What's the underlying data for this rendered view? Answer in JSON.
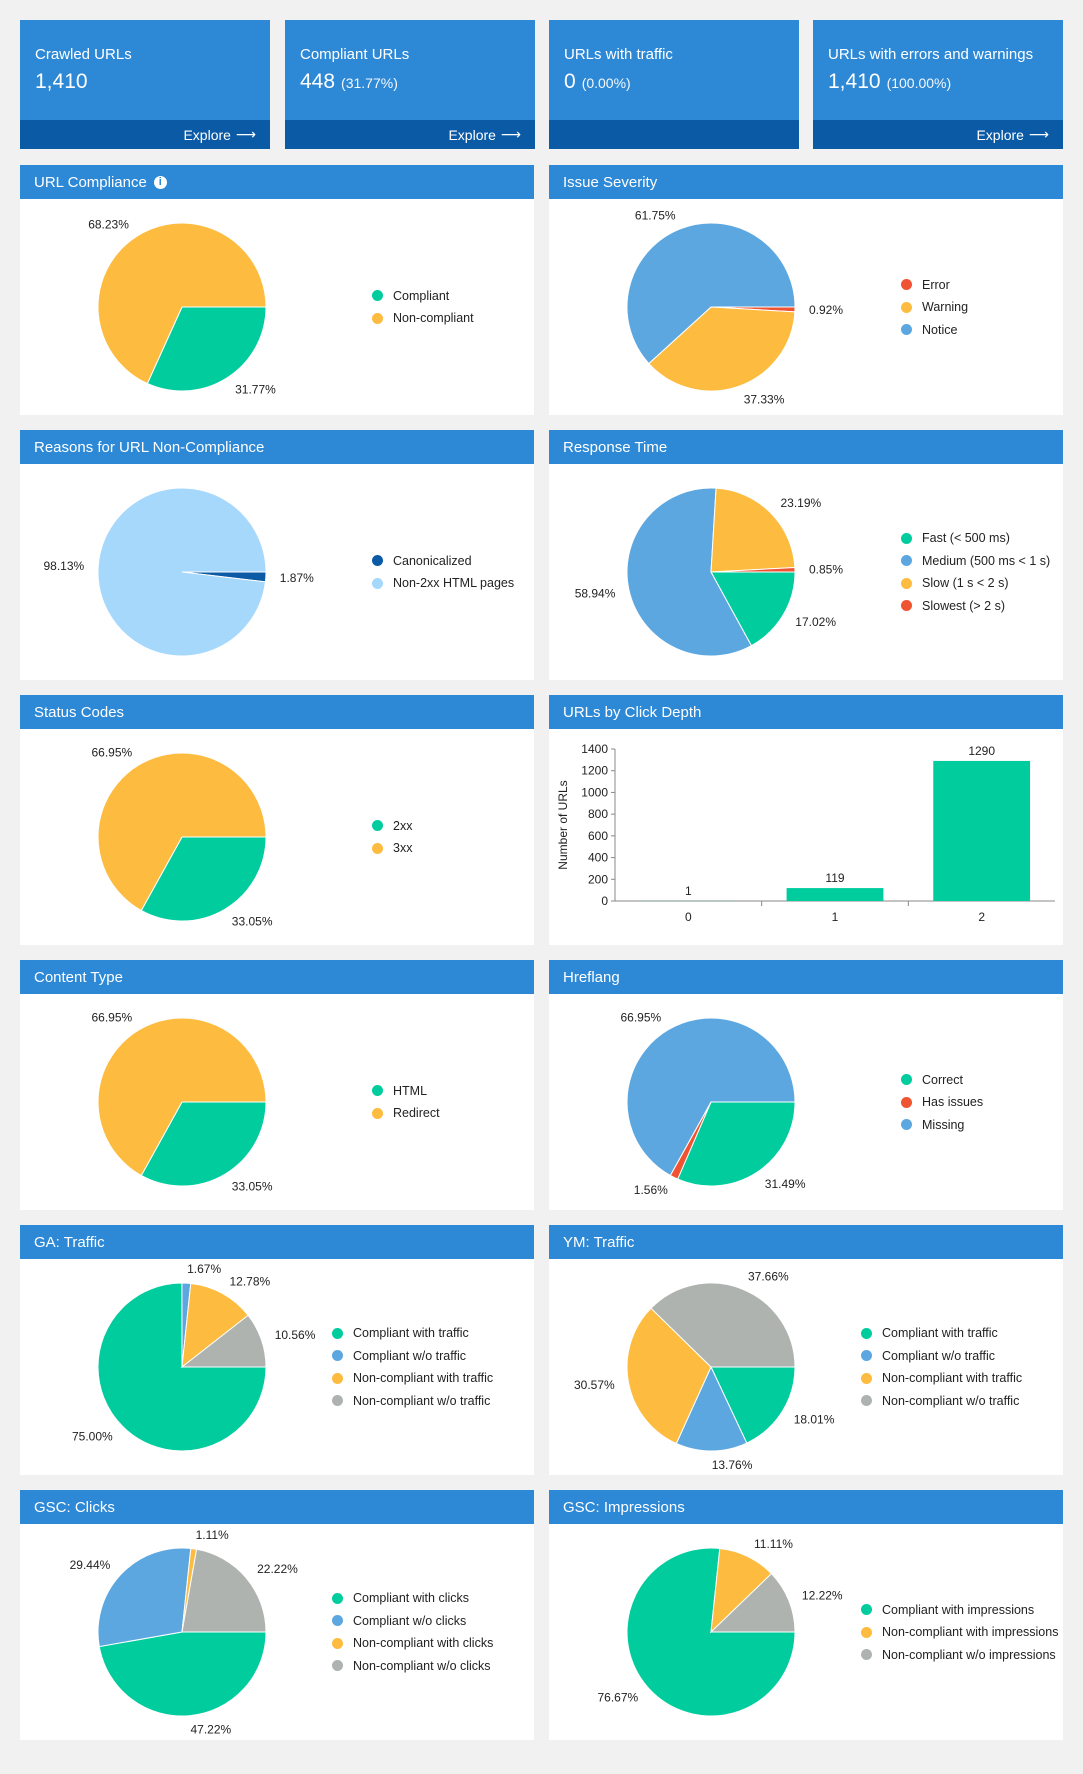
{
  "stats": [
    {
      "title": "Crawled URLs",
      "value": "1,410",
      "pct": "",
      "explore": "Explore"
    },
    {
      "title": "Compliant URLs",
      "value": "448",
      "pct": "(31.77%)",
      "explore": "Explore"
    },
    {
      "title": "URLs with traffic",
      "value": "0",
      "pct": "(0.00%)",
      "explore": ""
    },
    {
      "title": "URLs with errors and warnings",
      "value": "1,410",
      "pct": "(100.00%)",
      "explore": "Explore"
    }
  ],
  "colors": {
    "header": "#2d88d6",
    "footer": "#0b5aa6",
    "green": "#00cc9e",
    "orange": "#fdbb3f",
    "blue": "#5da7e0",
    "red": "#ef5331",
    "gray": "#aeb3b0",
    "lightblue": "#a6d8fc",
    "darkblue": "#0b5aa6"
  },
  "charts": [
    {
      "key": "url_compliance",
      "title": "URL Compliance",
      "info_icon": "info-circle-icon",
      "type": "pie",
      "col": 0,
      "row": 0,
      "slices": [
        {
          "label": "Compliant",
          "value": 31.77,
          "color": "#00cc9e",
          "pct_label": "31.77%"
        },
        {
          "label": "Non-compliant",
          "value": 68.23,
          "color": "#fdbb3f",
          "pct_label": "68.23%"
        }
      ]
    },
    {
      "key": "issue_severity",
      "title": "Issue Severity",
      "type": "pie",
      "col": 1,
      "row": 0,
      "slices": [
        {
          "label": "Error",
          "value": 0.92,
          "color": "#ef5331",
          "pct_label": "0.92%"
        },
        {
          "label": "Warning",
          "value": 37.33,
          "color": "#fdbb3f",
          "pct_label": "37.33%"
        },
        {
          "label": "Notice",
          "value": 61.75,
          "color": "#5da7e0",
          "pct_label": "61.75%"
        }
      ]
    },
    {
      "key": "non_compliance_reasons",
      "title": "Reasons for URL Non-Compliance",
      "type": "pie",
      "col": 0,
      "row": 1,
      "slices": [
        {
          "label": "Canonicalized",
          "value": 1.87,
          "color": "#0b5aa6",
          "pct_label": "1.87%"
        },
        {
          "label": "Non-2xx HTML pages",
          "value": 98.13,
          "color": "#a6d8fc",
          "pct_label": "98.13%"
        }
      ]
    },
    {
      "key": "response_time",
      "title": "Response Time",
      "type": "pie",
      "col": 1,
      "row": 1,
      "slices": [
        {
          "label": "Fast (< 500 ms)",
          "value": 17.02,
          "color": "#00cc9e",
          "pct_label": "17.02%"
        },
        {
          "label": "Medium (500 ms < 1 s)",
          "value": 58.94,
          "color": "#5da7e0",
          "pct_label": "58.94%"
        },
        {
          "label": "Slow (1 s < 2 s)",
          "value": 23.19,
          "color": "#fdbb3f",
          "pct_label": "23.19%"
        },
        {
          "label": "Slowest (> 2 s)",
          "value": 0.85,
          "color": "#ef5331",
          "pct_label": "0.85%"
        }
      ]
    },
    {
      "key": "status_codes",
      "title": "Status Codes",
      "type": "pie",
      "col": 0,
      "row": 2,
      "slices": [
        {
          "label": "2xx",
          "value": 33.05,
          "color": "#00cc9e",
          "pct_label": "33.05%"
        },
        {
          "label": "3xx",
          "value": 66.95,
          "color": "#fdbb3f",
          "pct_label": "66.95%"
        }
      ]
    },
    {
      "key": "click_depth",
      "title": "URLs by Click Depth",
      "type": "bar",
      "col": 1,
      "row": 2,
      "ylabel": "Number of URLs",
      "ylim": [
        0,
        1400
      ],
      "yticks": [
        0,
        200,
        400,
        600,
        800,
        1000,
        1200,
        1400
      ],
      "categories": [
        "0",
        "1",
        "2"
      ],
      "values": [
        1,
        119,
        1290
      ],
      "color": "#00cc9e"
    },
    {
      "key": "content_type",
      "title": "Content Type",
      "type": "pie",
      "col": 0,
      "row": 3,
      "slices": [
        {
          "label": "HTML",
          "value": 33.05,
          "color": "#00cc9e",
          "pct_label": "33.05%"
        },
        {
          "label": "Redirect",
          "value": 66.95,
          "color": "#fdbb3f",
          "pct_label": "66.95%"
        }
      ]
    },
    {
      "key": "hreflang",
      "title": "Hreflang",
      "type": "pie",
      "col": 1,
      "row": 3,
      "slices": [
        {
          "label": "Correct",
          "value": 31.49,
          "color": "#00cc9e",
          "pct_label": "31.49%"
        },
        {
          "label": "Has issues",
          "value": 1.56,
          "color": "#ef5331",
          "pct_label": "1.56%"
        },
        {
          "label": "Missing",
          "value": 66.95,
          "color": "#5da7e0",
          "pct_label": "66.95%"
        }
      ]
    },
    {
      "key": "ga_traffic",
      "title": "GA: Traffic",
      "type": "pie",
      "col": 0,
      "row": 4,
      "slices": [
        {
          "label": "Compliant with traffic",
          "value": 75.0,
          "color": "#00cc9e",
          "pct_label": "75.00%"
        },
        {
          "label": "Compliant w/o traffic",
          "value": 1.67,
          "color": "#5da7e0",
          "pct_label": "1.67%"
        },
        {
          "label": "Non-compliant with traffic",
          "value": 12.78,
          "color": "#fdbb3f",
          "pct_label": "12.78%"
        },
        {
          "label": "Non-compliant w/o traffic",
          "value": 10.56,
          "color": "#aeb3b0",
          "pct_label": "10.56%"
        }
      ]
    },
    {
      "key": "ym_traffic",
      "title": "YM: Traffic",
      "type": "pie",
      "col": 1,
      "row": 4,
      "slices": [
        {
          "label": "Compliant with traffic",
          "value": 18.01,
          "color": "#00cc9e",
          "pct_label": "18.01%"
        },
        {
          "label": "Compliant w/o traffic",
          "value": 13.76,
          "color": "#5da7e0",
          "pct_label": "13.76%"
        },
        {
          "label": "Non-compliant with traffic",
          "value": 30.57,
          "color": "#fdbb3f",
          "pct_label": "30.57%"
        },
        {
          "label": "Non-compliant w/o traffic",
          "value": 37.66,
          "color": "#aeb3b0",
          "pct_label": "37.66%"
        }
      ]
    },
    {
      "key": "gsc_clicks",
      "title": "GSC: Clicks",
      "type": "pie",
      "col": 0,
      "row": 5,
      "slices": [
        {
          "label": "Compliant with clicks",
          "value": 47.22,
          "color": "#00cc9e",
          "pct_label": "47.22%"
        },
        {
          "label": "Compliant w/o clicks",
          "value": 29.44,
          "color": "#5da7e0",
          "pct_label": "29.44%"
        },
        {
          "label": "Non-compliant with clicks",
          "value": 1.11,
          "color": "#fdbb3f",
          "pct_label": "1.11%"
        },
        {
          "label": "Non-compliant w/o clicks",
          "value": 22.22,
          "color": "#aeb3b0",
          "pct_label": "22.22%"
        }
      ]
    },
    {
      "key": "gsc_impressions",
      "title": "GSC: Impressions",
      "type": "pie",
      "col": 1,
      "row": 5,
      "slices": [
        {
          "label": "Compliant with impressions",
          "value": 76.67,
          "color": "#00cc9e",
          "pct_label": "76.67%"
        },
        {
          "label": "Non-compliant with impressions",
          "value": 11.11,
          "color": "#fdbb3f",
          "pct_label": "11.11%"
        },
        {
          "label": "Non-compliant w/o impressions",
          "value": 12.22,
          "color": "#aeb3b0",
          "pct_label": "12.22%"
        }
      ]
    }
  ]
}
